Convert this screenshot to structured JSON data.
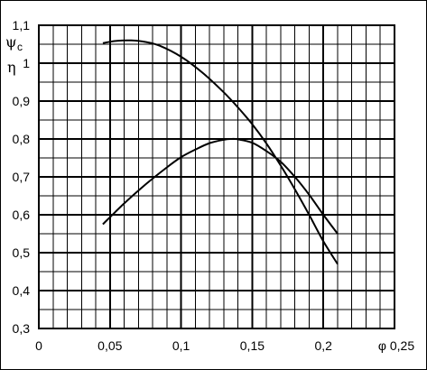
{
  "chart_data": {
    "type": "line",
    "title": "",
    "xlabel": "φ",
    "ylabel_top": "ψ",
    "ylabel_top_subscript": "c",
    "ylabel_bottom": "η",
    "xlim": [
      0,
      0.25
    ],
    "ylim": [
      0.3,
      1.1
    ],
    "grid": true,
    "minor_x_step": 0.01,
    "minor_y_step": 0.05,
    "x_tick_values": [
      0,
      0.05,
      0.1,
      0.15,
      0.2,
      0.25
    ],
    "x_tick_labels": [
      "0",
      "0,05",
      "0,1",
      "0,15",
      "0,2",
      "φ 0,25"
    ],
    "y_tick_values": [
      0.3,
      0.4,
      0.5,
      0.6,
      0.7,
      0.8,
      0.9,
      1.0,
      1.1
    ],
    "y_tick_labels": [
      "0,3",
      "0,4",
      "0,5",
      "0,6",
      "0,7",
      "0,8",
      "0,9",
      "1",
      "1,1"
    ],
    "series": [
      {
        "x": [
          0.045,
          0.055,
          0.065,
          0.075,
          0.085,
          0.1,
          0.115,
          0.13,
          0.14,
          0.15,
          0.16,
          0.17,
          0.18,
          0.19,
          0.2,
          0.21
        ],
        "y": [
          1.053,
          1.059,
          1.06,
          1.056,
          1.046,
          1.017,
          0.975,
          0.923,
          0.883,
          0.839,
          0.788,
          0.73,
          0.667,
          0.6,
          0.53,
          0.47
        ]
      },
      {
        "x": [
          0.045,
          0.06,
          0.075,
          0.09,
          0.1,
          0.11,
          0.12,
          0.13,
          0.135,
          0.14,
          0.15,
          0.16,
          0.17,
          0.18,
          0.19,
          0.2,
          0.21
        ],
        "y": [
          0.575,
          0.63,
          0.68,
          0.725,
          0.752,
          0.772,
          0.789,
          0.798,
          0.8,
          0.799,
          0.79,
          0.768,
          0.74,
          0.7,
          0.653,
          0.6,
          0.55
        ]
      }
    ]
  }
}
